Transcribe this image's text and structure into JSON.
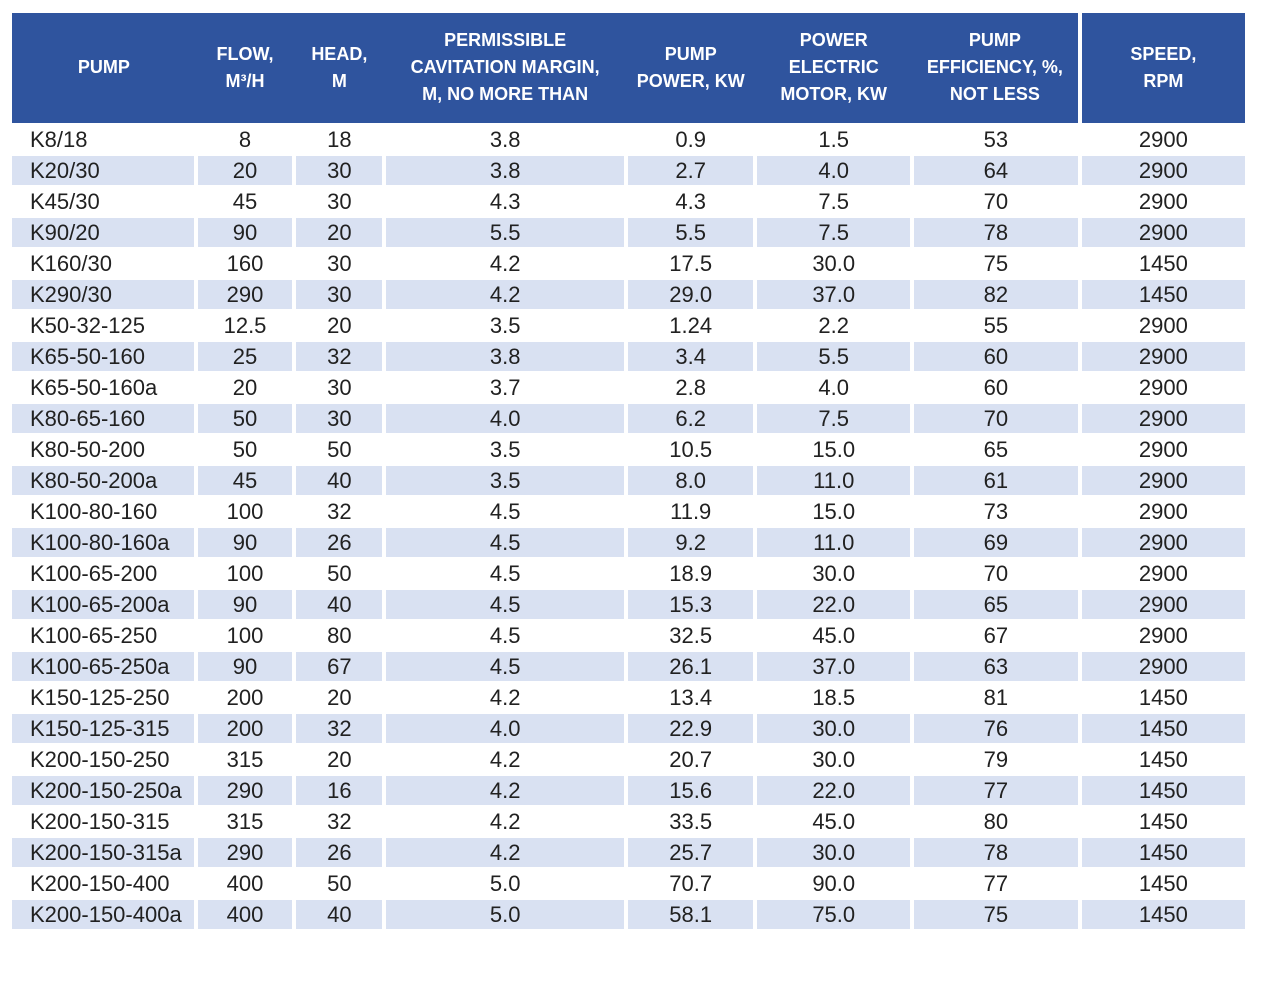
{
  "colors": {
    "header_bg": "#2f549e",
    "stripe_bg": "#d9e1f2",
    "text": "#212121",
    "header_text": "#ffffff",
    "page_bg": "#ffffff"
  },
  "table": {
    "columns": [
      {
        "key": "pump",
        "label": "PUMP",
        "lines": [
          "PUMP"
        ]
      },
      {
        "key": "flow",
        "label": "FLOW, M³/H",
        "lines": [
          "FLOW,",
          "M³/H"
        ]
      },
      {
        "key": "head",
        "label": "HEAD, M",
        "lines": [
          "HEAD,",
          "M"
        ]
      },
      {
        "key": "cavitation",
        "label": "PERMISSIBLE CAVITATION MARGIN, M, NO MORE THAN",
        "lines": [
          "PERMISSIBLE",
          "CAVITATION MARGIN,",
          "M, NO MORE THAN"
        ]
      },
      {
        "key": "power",
        "label": "PUMP POWER, KW",
        "lines": [
          "PUMP",
          "POWER, KW"
        ]
      },
      {
        "key": "motor",
        "label": "POWER ELECTRIC MOTOR, KW",
        "lines": [
          "POWER",
          "ELECTRIC",
          "MOTOR, KW"
        ]
      },
      {
        "key": "efficiency",
        "label": "PUMP EFFICIENCY, %, NOT LESS",
        "lines": [
          "PUMP",
          "EFFICIENCY, %,",
          "NOT LESS"
        ]
      },
      {
        "key": "speed",
        "label": "SPEED, RPM",
        "lines": [
          "SPEED,",
          "RPM"
        ]
      }
    ],
    "rows": [
      {
        "pump": "K8/18",
        "flow": "8",
        "head": "18",
        "cavitation": "3.8",
        "power": "0.9",
        "motor": "1.5",
        "efficiency": "53",
        "speed": "2900"
      },
      {
        "pump": "K20/30",
        "flow": "20",
        "head": "30",
        "cavitation": "3.8",
        "power": "2.7",
        "motor": "4.0",
        "efficiency": "64",
        "speed": "2900"
      },
      {
        "pump": "K45/30",
        "flow": "45",
        "head": "30",
        "cavitation": "4.3",
        "power": "4.3",
        "motor": "7.5",
        "efficiency": "70",
        "speed": "2900"
      },
      {
        "pump": "K90/20",
        "flow": "90",
        "head": "20",
        "cavitation": "5.5",
        "power": "5.5",
        "motor": "7.5",
        "efficiency": "78",
        "speed": "2900"
      },
      {
        "pump": "K160/30",
        "flow": "160",
        "head": "30",
        "cavitation": "4.2",
        "power": "17.5",
        "motor": "30.0",
        "efficiency": "75",
        "speed": "1450"
      },
      {
        "pump": "K290/30",
        "flow": "290",
        "head": "30",
        "cavitation": "4.2",
        "power": "29.0",
        "motor": "37.0",
        "efficiency": "82",
        "speed": "1450"
      },
      {
        "pump": "K50-32-125",
        "flow": "12.5",
        "head": "20",
        "cavitation": "3.5",
        "power": "1.24",
        "motor": "2.2",
        "efficiency": "55",
        "speed": "2900"
      },
      {
        "pump": "K65-50-160",
        "flow": "25",
        "head": "32",
        "cavitation": "3.8",
        "power": "3.4",
        "motor": "5.5",
        "efficiency": "60",
        "speed": "2900"
      },
      {
        "pump": "K65-50-160a",
        "flow": "20",
        "head": "30",
        "cavitation": "3.7",
        "power": "2.8",
        "motor": "4.0",
        "efficiency": "60",
        "speed": "2900"
      },
      {
        "pump": "K80-65-160",
        "flow": "50",
        "head": "30",
        "cavitation": "4.0",
        "power": "6.2",
        "motor": "7.5",
        "efficiency": "70",
        "speed": "2900"
      },
      {
        "pump": "K80-50-200",
        "flow": "50",
        "head": "50",
        "cavitation": "3.5",
        "power": "10.5",
        "motor": "15.0",
        "efficiency": "65",
        "speed": "2900"
      },
      {
        "pump": "K80-50-200a",
        "flow": "45",
        "head": "40",
        "cavitation": "3.5",
        "power": "8.0",
        "motor": "11.0",
        "efficiency": "61",
        "speed": "2900"
      },
      {
        "pump": "K100-80-160",
        "flow": "100",
        "head": "32",
        "cavitation": "4.5",
        "power": "11.9",
        "motor": "15.0",
        "efficiency": "73",
        "speed": "2900"
      },
      {
        "pump": "K100-80-160a",
        "flow": "90",
        "head": "26",
        "cavitation": "4.5",
        "power": "9.2",
        "motor": "11.0",
        "efficiency": "69",
        "speed": "2900"
      },
      {
        "pump": "K100-65-200",
        "flow": "100",
        "head": "50",
        "cavitation": "4.5",
        "power": "18.9",
        "motor": "30.0",
        "efficiency": "70",
        "speed": "2900"
      },
      {
        "pump": "K100-65-200a",
        "flow": "90",
        "head": "40",
        "cavitation": "4.5",
        "power": "15.3",
        "motor": "22.0",
        "efficiency": "65",
        "speed": "2900"
      },
      {
        "pump": "K100-65-250",
        "flow": "100",
        "head": "80",
        "cavitation": "4.5",
        "power": "32.5",
        "motor": "45.0",
        "efficiency": "67",
        "speed": "2900"
      },
      {
        "pump": "K100-65-250a",
        "flow": "90",
        "head": "67",
        "cavitation": "4.5",
        "power": "26.1",
        "motor": "37.0",
        "efficiency": "63",
        "speed": "2900"
      },
      {
        "pump": "K150-125-250",
        "flow": "200",
        "head": "20",
        "cavitation": "4.2",
        "power": "13.4",
        "motor": "18.5",
        "efficiency": "81",
        "speed": "1450"
      },
      {
        "pump": "K150-125-315",
        "flow": "200",
        "head": "32",
        "cavitation": "4.0",
        "power": "22.9",
        "motor": "30.0",
        "efficiency": "76",
        "speed": "1450"
      },
      {
        "pump": "K200-150-250",
        "flow": "315",
        "head": "20",
        "cavitation": "4.2",
        "power": "20.7",
        "motor": "30.0",
        "efficiency": "79",
        "speed": "1450"
      },
      {
        "pump": "K200-150-250a",
        "flow": "290",
        "head": "16",
        "cavitation": "4.2",
        "power": "15.6",
        "motor": "22.0",
        "efficiency": "77",
        "speed": "1450"
      },
      {
        "pump": "K200-150-315",
        "flow": "315",
        "head": "32",
        "cavitation": "4.2",
        "power": "33.5",
        "motor": "45.0",
        "efficiency": "80",
        "speed": "1450"
      },
      {
        "pump": "K200-150-315a",
        "flow": "290",
        "head": "26",
        "cavitation": "4.2",
        "power": "25.7",
        "motor": "30.0",
        "efficiency": "78",
        "speed": "1450"
      },
      {
        "pump": "K200-150-400",
        "flow": "400",
        "head": "50",
        "cavitation": "5.0",
        "power": "70.7",
        "motor": "90.0",
        "efficiency": "77",
        "speed": "1450"
      },
      {
        "pump": "K200-150-400a",
        "flow": "400",
        "head": "40",
        "cavitation": "5.0",
        "power": "58.1",
        "motor": "75.0",
        "efficiency": "75",
        "speed": "1450"
      }
    ]
  }
}
